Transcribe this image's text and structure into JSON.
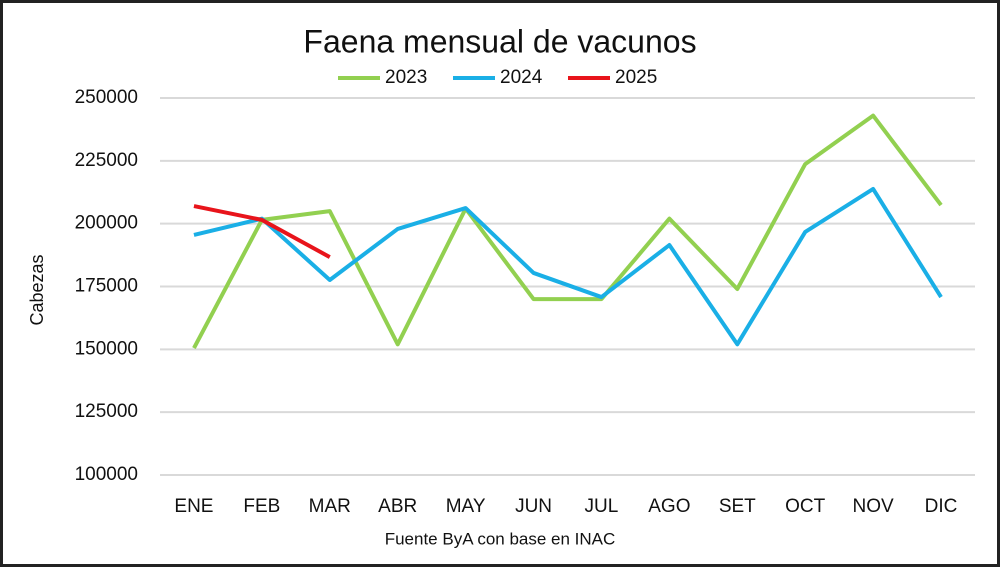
{
  "chart_data": {
    "type": "line",
    "title": "Faena mensual de vacunos",
    "y_label": "Cabezas",
    "source": "Fuente ByA con base en INAC",
    "categories": [
      "ENE",
      "FEB",
      "MAR",
      "ABR",
      "MAY",
      "JUN",
      "JUL",
      "AGO",
      "SET",
      "OCT",
      "NOV",
      "DIC"
    ],
    "series": [
      {
        "name": "2023",
        "color": "#92d050",
        "values": [
          150500,
          201500,
          205000,
          152000,
          206000,
          170000,
          170000,
          202000,
          174000,
          223700,
          243000,
          207400
        ]
      },
      {
        "name": "2024",
        "color": "#1aafe6",
        "values": [
          195500,
          202000,
          177600,
          197900,
          206200,
          180400,
          170800,
          191500,
          152000,
          196700,
          213800,
          170800
        ]
      },
      {
        "name": "2025",
        "color": "#e8141b",
        "values": [
          207000,
          201500,
          186700,
          null,
          null,
          null,
          null,
          null,
          null,
          null,
          null,
          null
        ]
      }
    ],
    "ylim": [
      100000,
      250000
    ],
    "yticks": [
      100000,
      125000,
      150000,
      175000,
      200000,
      225000,
      250000
    ],
    "grid": true,
    "legend": "top"
  }
}
